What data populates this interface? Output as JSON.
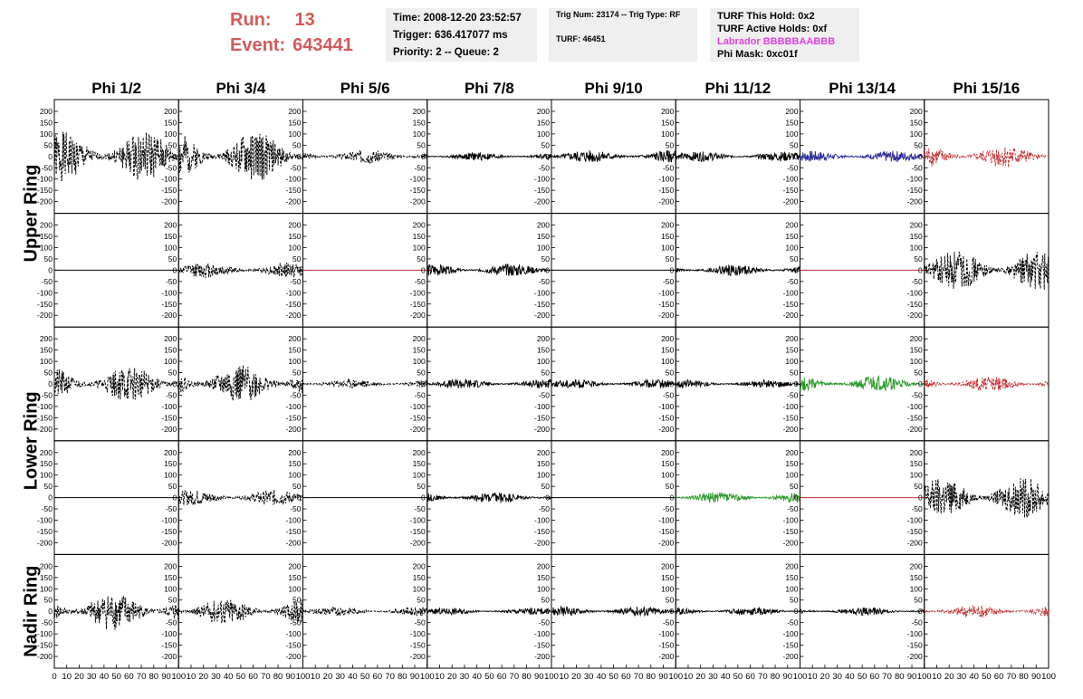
{
  "header": {
    "run_label": "Run:",
    "run_value": "13",
    "event_label": "Event:",
    "event_value": "643441",
    "time": "Time: 2008-12-20 23:52:57",
    "trigger": "Trigger: 636.417077 ms",
    "priority": "Priority: 2 -- Queue: 2",
    "trig_num": "Trig Num: 23174 -- Trig Type: RF",
    "turf": "TURF: 46451",
    "turf_hold": "TURF This Hold: 0x2",
    "turf_active": "TURF Active Holds: 0xf",
    "labrador": "Labrador BBBBBAABBB",
    "phi_mask": "Phi Mask: 0xc01f"
  },
  "chart_data": {
    "type": "line",
    "columns": [
      "Phi 1/2",
      "Phi 3/4",
      "Phi 5/6",
      "Phi 7/8",
      "Phi 9/10",
      "Phi 11/12",
      "Phi 13/14",
      "Phi 15/16"
    ],
    "row_labels": [
      "Upper Ring",
      "Lower Ring",
      "Nadir Ring"
    ],
    "ylim": [
      -220,
      220
    ],
    "y_ticks": [
      -200,
      -150,
      -100,
      -50,
      0,
      50,
      100,
      150,
      200
    ],
    "xlim": [
      0,
      100
    ],
    "x_ticks": [
      0,
      10,
      20,
      30,
      40,
      50,
      60,
      70,
      80,
      90,
      100
    ],
    "colors": {
      "black": "#000000",
      "blue": "#2a2a9a",
      "red": "#c03030",
      "green": "#2a9a2a",
      "flat_red": "#c03030"
    },
    "panels": [
      [
        {
          "amp": 110,
          "style": "dash",
          "color": "black",
          "seed": 1
        },
        {
          "amp": 110,
          "style": "dash",
          "color": "black",
          "seed": 2
        },
        {
          "amp": 30,
          "style": "dash",
          "color": "black",
          "seed": 3
        },
        {
          "amp": 18,
          "style": "solid",
          "color": "black",
          "seed": 4
        },
        {
          "amp": 28,
          "style": "solid",
          "color": "black",
          "seed": 5
        },
        {
          "amp": 22,
          "style": "solid",
          "color": "black",
          "seed": 6
        },
        {
          "amp": 25,
          "style": "solid",
          "color": "blue",
          "seed": 7
        },
        {
          "amp": 50,
          "style": "dash",
          "color": "red",
          "seed": 8
        }
      ],
      [
        {
          "amp": 0,
          "style": "flat",
          "color": "black",
          "seed": 11
        },
        {
          "amp": 35,
          "style": "dash",
          "color": "black",
          "seed": 12
        },
        {
          "amp": 0,
          "style": "flat",
          "color": "flat_red",
          "seed": 13
        },
        {
          "amp": 28,
          "style": "solid",
          "color": "black",
          "seed": 14
        },
        {
          "amp": 0,
          "style": "flat",
          "color": "black",
          "seed": 15
        },
        {
          "amp": 25,
          "style": "solid",
          "color": "black",
          "seed": 16
        },
        {
          "amp": 0,
          "style": "flat",
          "color": "flat_red",
          "seed": 17
        },
        {
          "amp": 90,
          "style": "dash",
          "color": "black",
          "seed": 18
        }
      ],
      [
        {
          "amp": 80,
          "style": "dash",
          "color": "black",
          "seed": 21
        },
        {
          "amp": 85,
          "style": "dash",
          "color": "black",
          "seed": 22
        },
        {
          "amp": 20,
          "style": "dash",
          "color": "black",
          "seed": 23
        },
        {
          "amp": 22,
          "style": "solid",
          "color": "black",
          "seed": 24
        },
        {
          "amp": 20,
          "style": "solid",
          "color": "black",
          "seed": 25
        },
        {
          "amp": 18,
          "style": "solid",
          "color": "black",
          "seed": 26
        },
        {
          "amp": 35,
          "style": "solid",
          "color": "green",
          "seed": 27
        },
        {
          "amp": 35,
          "style": "dash",
          "color": "red",
          "seed": 28
        }
      ],
      [
        {
          "amp": 0,
          "style": "flat",
          "color": "black",
          "seed": 31
        },
        {
          "amp": 35,
          "style": "dash",
          "color": "black",
          "seed": 32
        },
        {
          "amp": 0,
          "style": "flat",
          "color": "black",
          "seed": 33
        },
        {
          "amp": 25,
          "style": "solid",
          "color": "black",
          "seed": 34
        },
        {
          "amp": 0,
          "style": "flat",
          "color": "black",
          "seed": 35
        },
        {
          "amp": 25,
          "style": "solid",
          "color": "green",
          "seed": 36
        },
        {
          "amp": 0,
          "style": "flat",
          "color": "flat_red",
          "seed": 37
        },
        {
          "amp": 90,
          "style": "dash",
          "color": "black",
          "seed": 38
        }
      ],
      [
        {
          "amp": 85,
          "style": "dash",
          "color": "black",
          "seed": 41
        },
        {
          "amp": 60,
          "style": "dash",
          "color": "black",
          "seed": 42
        },
        {
          "amp": 20,
          "style": "dash",
          "color": "black",
          "seed": 43
        },
        {
          "amp": 15,
          "style": "solid",
          "color": "black",
          "seed": 44
        },
        {
          "amp": 22,
          "style": "solid",
          "color": "black",
          "seed": 45
        },
        {
          "amp": 18,
          "style": "solid",
          "color": "black",
          "seed": 46
        },
        {
          "amp": 18,
          "style": "solid",
          "color": "black",
          "seed": 47
        },
        {
          "amp": 30,
          "style": "dash",
          "color": "red",
          "seed": 48
        }
      ]
    ]
  }
}
